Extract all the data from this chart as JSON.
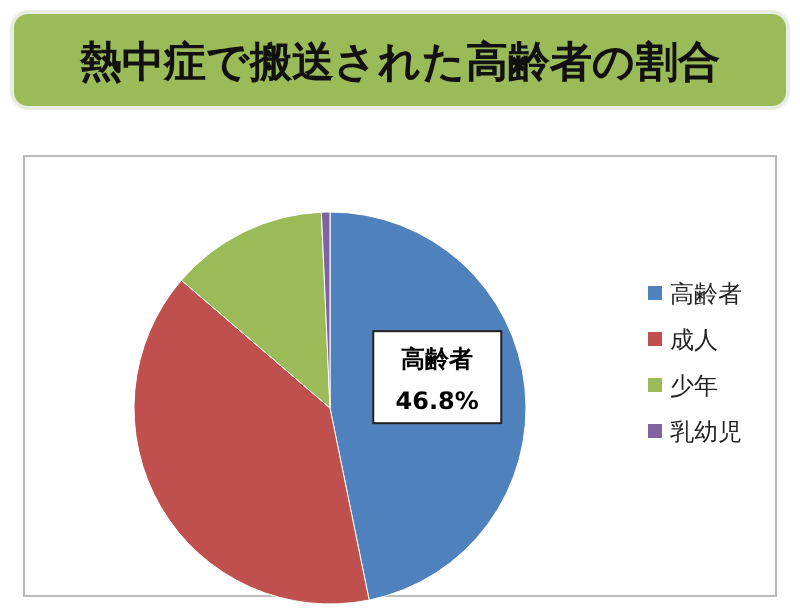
{
  "chart_data": {
    "type": "pie",
    "title": "熱中症で搬送された高齢者の割合",
    "categories": [
      "高齢者",
      "成人",
      "少年",
      "乳幼児"
    ],
    "values": [
      46.8,
      39.5,
      13.0,
      0.7
    ],
    "colors": [
      "#4f81bd",
      "#c0504d",
      "#9bbb59",
      "#8064a2"
    ],
    "value_labels": [
      "46.8%",
      null,
      null,
      null
    ],
    "legend": "right"
  }
}
